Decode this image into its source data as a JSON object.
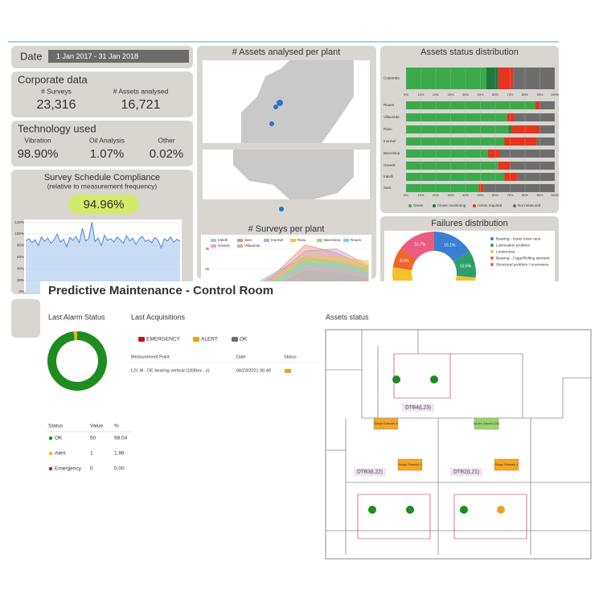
{
  "dashboard": {
    "date": {
      "label": "Date",
      "range": "1 Jan 2017 - 31 Jan 2018"
    },
    "corporate": {
      "title": "Corporate data",
      "items": [
        {
          "label": "# Surveys",
          "value": "23,316"
        },
        {
          "label": "# Assets analysed",
          "value": "16,721"
        }
      ]
    },
    "technology": {
      "title": "Technology used",
      "items": [
        {
          "label": "Vibration",
          "value": "98.90%"
        },
        {
          "label": "Oil Analysis",
          "value": "1.07%"
        },
        {
          "label": "Other",
          "value": "0.02%"
        }
      ]
    },
    "compliance": {
      "title": "Survey Schedule Compliance",
      "subtitle": "(relative to measurement frequency)",
      "value": "94.96%",
      "chart": {
        "type": "line",
        "color": "#4a86d8",
        "values": [
          88,
          92,
          85,
          90,
          80,
          95,
          87,
          93,
          84,
          90,
          100,
          86,
          91,
          78,
          94,
          89,
          96,
          85,
          110,
          88,
          92,
          120,
          87,
          93,
          80,
          98,
          89,
          92,
          86,
          95,
          90,
          84,
          97,
          88,
          93,
          82,
          91,
          96,
          87,
          90,
          85,
          94,
          89,
          76,
          92,
          88,
          95,
          86,
          91,
          87
        ],
        "ylim": [
          0,
          125
        ],
        "yticks": [
          {
            "value": 0,
            "label": "0%"
          },
          {
            "value": 20,
            "label": "20%"
          },
          {
            "value": 40,
            "label": "40%"
          },
          {
            "value": 60,
            "label": "60%"
          },
          {
            "value": 80,
            "label": "80%"
          },
          {
            "value": 100,
            "label": "100%"
          },
          {
            "value": 120,
            "label": "120%"
          }
        ]
      }
    },
    "map_title": "# Assets analysed per plant",
    "surveys_chart": {
      "type": "area",
      "title": "# Surveys per plant",
      "series": [
        {
          "name": "Iralelli",
          "color": "#9ecae1",
          "values": [
            300,
            900,
            1800,
            2600,
            2300,
            1900
          ]
        },
        {
          "name": "Sarn",
          "color": "#e9967a",
          "values": [
            200,
            800,
            1700,
            3200,
            2800,
            2100
          ]
        },
        {
          "name": "Inormel",
          "color": "#c8a2c8",
          "values": [
            250,
            700,
            1600,
            2900,
            3000,
            2200
          ]
        },
        {
          "name": "Ravu",
          "color": "#f4c542",
          "values": [
            200,
            600,
            1500,
            2700,
            2600,
            2400
          ]
        },
        {
          "name": "Barcelona",
          "color": "#98d98e",
          "values": [
            150,
            500,
            1400,
            2500,
            2400,
            2000
          ]
        },
        {
          "name": "Rouen",
          "color": "#7fd3e8",
          "values": [
            100,
            450,
            1300,
            2300,
            2200,
            1800
          ]
        },
        {
          "name": "Greenli",
          "color": "#f7a1c4",
          "values": [
            100,
            400,
            1200,
            2100,
            2000,
            1700
          ]
        },
        {
          "name": "Villaverde",
          "color": "#b5b5b5",
          "values": [
            80,
            350,
            1100,
            1900,
            1800,
            1500
          ]
        }
      ],
      "ylim": [
        0,
        3500
      ],
      "yticks": [
        {
          "value": 2000,
          "label": "2k"
        },
        {
          "value": 3000,
          "label": "3k"
        }
      ]
    },
    "status_chart": {
      "type": "bar",
      "orientation": "horizontal",
      "stacked": true,
      "title": "Assets status distribution",
      "categories": [
        "Corporate",
        "Rouen",
        "Villaverde",
        "Ravu",
        "Inormel",
        "Barcelona",
        "Greenli",
        "Iralelli",
        "Sarn"
      ],
      "series": [
        {
          "name": "Green",
          "color": "#3aaa4c",
          "values": [
            54,
            87,
            68,
            69,
            66,
            55,
            62,
            66,
            49
          ]
        },
        {
          "name": "Closer monitoring",
          "color": "#1c7a3a",
          "values": [
            8,
            0,
            0,
            2,
            0,
            0,
            0,
            0,
            0
          ]
        },
        {
          "name": "Action required",
          "color": "#e8331e",
          "values": [
            10,
            3,
            5,
            19,
            22,
            8,
            8,
            9,
            3
          ]
        },
        {
          "name": "Not measured",
          "color": "#6d6d6d",
          "values": [
            28,
            10,
            27,
            10,
            12,
            37,
            30,
            25,
            48
          ]
        }
      ],
      "xlim": [
        0,
        100
      ],
      "xticks": [
        {
          "value": 0,
          "label": "0%"
        },
        {
          "value": 10,
          "label": "10%"
        },
        {
          "value": 20,
          "label": "20%"
        },
        {
          "value": 30,
          "label": "30%"
        },
        {
          "value": 40,
          "label": "40%"
        },
        {
          "value": 50,
          "label": "50%"
        },
        {
          "value": 60,
          "label": "60%"
        },
        {
          "value": 70,
          "label": "70%"
        },
        {
          "value": 80,
          "label": "80%"
        },
        {
          "value": 90,
          "label": "90%"
        },
        {
          "value": 100,
          "label": "100%"
        }
      ]
    },
    "failures_chart": {
      "type": "pie",
      "title": "Failures distribution",
      "categories": [
        "Bearing - Outer inner race",
        "Lubrication problem",
        "Looseness",
        "Bearing - Cage/Rolling element",
        "Structural problem / resonance"
      ],
      "colors": [
        "#3a7fd1",
        "#2e9e6e",
        "#f2c12e",
        "#f0662a",
        "#ec5b82"
      ],
      "values": [
        16.1,
        10.6,
        50.6,
        8.0,
        14.7
      ],
      "value_labels": [
        "16.1%",
        "10.6%",
        null,
        "8.0%",
        "14.7%"
      ]
    }
  },
  "control": {
    "title": "Predictive Maintenance - Control Room",
    "alarm": {
      "title": "Last Alarm Status",
      "chart": {
        "type": "pie",
        "categories": [
          "OK",
          "Alert",
          "Emergency"
        ],
        "values": [
          50,
          1,
          0
        ],
        "colors": [
          "#1e8c1e",
          "#f0b400",
          "#c0141a"
        ]
      },
      "headers": [
        "Status",
        "Value",
        "%"
      ],
      "percent": [
        "98.04",
        "1.96",
        "0.00"
      ]
    },
    "acquisitions": {
      "title": "Last Acquisitions",
      "legend": [
        "EMERGENCY",
        "ALERT",
        "OK"
      ],
      "headers": [
        "Measurement Point",
        "Date",
        "Status"
      ],
      "rows": [
        [
          "L21 M - DE bearing vertical (1836ex - z)",
          "06/23/2021 06:49"
        ]
      ]
    },
    "assets": {
      "title": "Assets status",
      "areas": [
        "DTB4(L23)",
        "DTB3(L22)",
        "DTB2(L21)"
      ],
      "boxes": [
        "Range Extender 4",
        "InCare Cabinet (D2)",
        "Range Extender 3",
        "Range Extender 1"
      ]
    }
  }
}
